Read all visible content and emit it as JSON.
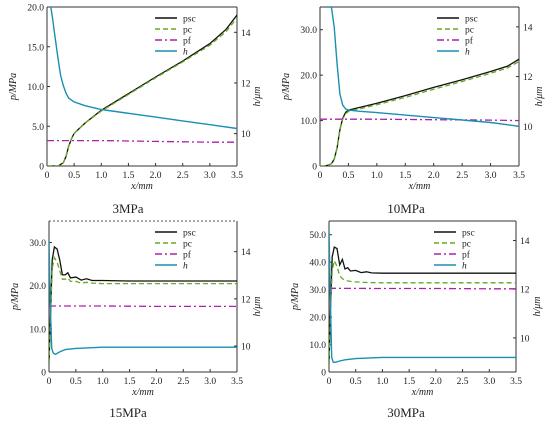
{
  "colors": {
    "psc": "#111111",
    "pc": "#66aa22",
    "pf": "#aa22aa",
    "h": "#1a8fb3",
    "frame": "#333333",
    "dashed_top": "#555555"
  },
  "chart_data": [
    {
      "type": "line",
      "caption": "3MPa",
      "xlabel": "x/mm",
      "ylabel": "p/MPa",
      "y2label": "h/μm",
      "xlim": [
        0,
        3.5
      ],
      "ylim": [
        0,
        20
      ],
      "y2lim": [
        8.72,
        15.0
      ],
      "xticks": [
        "0",
        "0.5",
        "1.0",
        "1.5",
        "2.0",
        "2.5",
        "3.0",
        "3.5"
      ],
      "yticks": [
        "0",
        "5.0",
        "10.0",
        "15.0",
        "20.0"
      ],
      "y2ticks": [
        "10",
        "12",
        "14"
      ],
      "legend": {
        "placement": "top-right"
      },
      "series": [
        {
          "name": "psc",
          "axis": "left",
          "style": "solid",
          "x": [
            0,
            0.2,
            0.3,
            0.35,
            0.4,
            0.45,
            0.5,
            0.7,
            1.0,
            1.5,
            2.0,
            2.5,
            3.0,
            3.3,
            3.5
          ],
          "y": [
            0,
            0,
            0.4,
            1.2,
            2.5,
            3.4,
            4.1,
            5.4,
            7.0,
            9.1,
            11.2,
            13.2,
            15.4,
            17.2,
            19.0
          ]
        },
        {
          "name": "pc",
          "axis": "left",
          "style": "dashed",
          "x": [
            0,
            0.2,
            0.3,
            0.35,
            0.4,
            0.45,
            0.5,
            0.7,
            1.0,
            1.5,
            2.0,
            2.5,
            3.0,
            3.3,
            3.5
          ],
          "y": [
            0,
            0,
            0.4,
            1.2,
            2.5,
            3.4,
            4.1,
            5.4,
            6.9,
            9.0,
            11.1,
            13.1,
            15.2,
            16.9,
            18.6
          ]
        },
        {
          "name": "pf",
          "axis": "left",
          "style": "dashdot",
          "x": [
            0,
            1.0,
            2.0,
            3.0,
            3.5
          ],
          "y": [
            3.2,
            3.2,
            3.1,
            3.0,
            3.0
          ]
        },
        {
          "name": "h",
          "axis": "right",
          "style": "solid",
          "x": [
            0.07,
            0.1,
            0.15,
            0.2,
            0.25,
            0.3,
            0.35,
            0.4,
            0.5,
            0.7,
            1.0,
            1.5,
            2.0,
            2.5,
            3.0,
            3.5
          ],
          "y": [
            15.0,
            14.6,
            13.8,
            13.0,
            12.3,
            11.9,
            11.6,
            11.4,
            11.25,
            11.1,
            10.95,
            10.8,
            10.65,
            10.5,
            10.35,
            10.2
          ]
        }
      ]
    },
    {
      "type": "line",
      "caption": "10MPa",
      "xlabel": "x/mm",
      "ylabel": "p/MPa",
      "y2label": "h/μm",
      "xlim": [
        0,
        3.5
      ],
      "ylim": [
        0,
        35
      ],
      "y2lim": [
        8.4,
        14.8
      ],
      "xticks": [
        "0",
        "0.5",
        "1.0",
        "1.5",
        "2.0",
        "2.5",
        "3.0",
        "3.5"
      ],
      "yticks": [
        "0",
        "10.0",
        "20.0",
        "30.0"
      ],
      "y2ticks": [
        "10",
        "12",
        "14"
      ],
      "legend": {
        "placement": "top-right"
      },
      "series": [
        {
          "name": "psc",
          "axis": "left",
          "style": "solid",
          "x": [
            0,
            0.1,
            0.2,
            0.25,
            0.3,
            0.35,
            0.4,
            0.45,
            0.5,
            0.7,
            1.0,
            1.5,
            2.0,
            2.5,
            3.0,
            3.3,
            3.5
          ],
          "y": [
            0,
            0,
            0.5,
            1.5,
            4.0,
            8.0,
            10.5,
            11.8,
            12.3,
            12.9,
            13.8,
            15.5,
            17.3,
            19.0,
            20.8,
            22.0,
            23.5
          ]
        },
        {
          "name": "pc",
          "axis": "left",
          "style": "dashed",
          "x": [
            0,
            0.1,
            0.2,
            0.25,
            0.3,
            0.35,
            0.4,
            0.45,
            0.5,
            0.7,
            1.0,
            1.5,
            2.0,
            2.5,
            3.0,
            3.3,
            3.5
          ],
          "y": [
            0,
            0,
            0.5,
            1.5,
            4.0,
            8.0,
            10.3,
            11.5,
            12.0,
            12.6,
            13.5,
            15.1,
            16.9,
            18.6,
            20.4,
            21.6,
            23.0
          ]
        },
        {
          "name": "pf",
          "axis": "left",
          "style": "dashdot",
          "x": [
            0,
            1.0,
            2.0,
            3.0,
            3.5
          ],
          "y": [
            10.3,
            10.3,
            10.2,
            10.1,
            10.0
          ]
        },
        {
          "name": "h",
          "axis": "right",
          "style": "solid",
          "x": [
            0.08,
            0.2,
            0.25,
            0.3,
            0.35,
            0.4,
            0.45,
            0.5,
            0.7,
            1.0,
            1.5,
            2.0,
            2.5,
            3.0,
            3.5
          ],
          "y": [
            14.8,
            14.8,
            14.0,
            12.5,
            11.3,
            10.85,
            10.7,
            10.65,
            10.6,
            10.55,
            10.45,
            10.35,
            10.25,
            10.15,
            10.0
          ]
        }
      ]
    },
    {
      "type": "line",
      "caption": "15MPa",
      "xlabel": "x/mm",
      "ylabel": "p/MPa",
      "y2label": "h/μm",
      "xlim": [
        0,
        3.5
      ],
      "ylim": [
        0,
        35
      ],
      "y2lim": [
        8.9,
        15.3
      ],
      "xticks": [
        "0",
        "0.5",
        "1.0",
        "1.5",
        "2.0",
        "2.5",
        "3.0",
        "3.5"
      ],
      "yticks": [
        "0",
        "10.0",
        "20.0",
        "30.0"
      ],
      "y2ticks": [
        "10",
        "12",
        "14"
      ],
      "legend": {
        "placement": "top-right"
      },
      "series": [
        {
          "name": "psc",
          "axis": "left",
          "style": "solid",
          "x": [
            0,
            0.03,
            0.06,
            0.1,
            0.15,
            0.2,
            0.25,
            0.3,
            0.35,
            0.4,
            0.5,
            0.6,
            0.7,
            0.8,
            1.0,
            1.5,
            2.0,
            2.5,
            3.0,
            3.5
          ],
          "y": [
            2,
            14,
            26,
            29,
            28.5,
            26,
            22.5,
            22.5,
            23,
            21.8,
            22,
            21.3,
            21.6,
            21.2,
            21.2,
            21.1,
            21.1,
            21.1,
            21.1,
            21.1
          ]
        },
        {
          "name": "pc",
          "axis": "left",
          "style": "dashed",
          "x": [
            0,
            0.03,
            0.06,
            0.1,
            0.15,
            0.2,
            0.25,
            0.3,
            0.35,
            0.4,
            0.5,
            0.6,
            0.7,
            0.8,
            1.0,
            1.5,
            2.0,
            2.5,
            3.0,
            3.5
          ],
          "y": [
            2,
            13,
            24,
            26.5,
            25.5,
            23.5,
            21.5,
            21.5,
            21.8,
            21.0,
            21.0,
            20.6,
            20.8,
            20.6,
            20.5,
            20.5,
            20.5,
            20.5,
            20.5,
            20.5
          ]
        },
        {
          "name": "pf",
          "axis": "left",
          "style": "dashdot",
          "x": [
            0,
            1.0,
            2.0,
            3.0,
            3.5
          ],
          "y": [
            15.3,
            15.3,
            15.2,
            15.2,
            15.2
          ]
        },
        {
          "name": "h",
          "axis": "right",
          "style": "solid",
          "x": [
            0,
            0.02,
            0.05,
            0.08,
            0.12,
            0.2,
            0.3,
            0.5,
            1.0,
            1.5,
            2.0,
            2.5,
            3.0,
            3.5
          ],
          "y": [
            14.5,
            12.0,
            9.9,
            9.7,
            9.65,
            9.75,
            9.85,
            9.9,
            9.95,
            9.95,
            9.95,
            9.95,
            9.95,
            9.95
          ]
        }
      ]
    },
    {
      "type": "line",
      "caption": "30MPa",
      "xlabel": "x/mm",
      "ylabel": "p/MPa",
      "y2label": "h/μm",
      "xlim": [
        0,
        3.5
      ],
      "ylim": [
        0,
        55
      ],
      "y2lim": [
        8.6,
        14.8
      ],
      "xticks": [
        "0",
        "0.5",
        "1.0",
        "1.5",
        "2.0",
        "2.5",
        "3.0",
        "3.5"
      ],
      "yticks": [
        "0",
        "10.0",
        "20.0",
        "30.0",
        "40.0",
        "50.0"
      ],
      "y2ticks": [
        "10",
        "12",
        "14"
      ],
      "legend": {
        "placement": "top-right"
      },
      "series": [
        {
          "name": "psc",
          "axis": "left",
          "style": "solid",
          "x": [
            0,
            0.03,
            0.06,
            0.1,
            0.15,
            0.2,
            0.25,
            0.3,
            0.35,
            0.4,
            0.5,
            0.6,
            0.7,
            0.8,
            1.0,
            1.5,
            2.0,
            2.5,
            3.0,
            3.5
          ],
          "y": [
            3,
            25,
            42,
            45.5,
            45,
            39,
            41,
            37.5,
            38,
            36.8,
            37,
            36.2,
            36.5,
            36.1,
            36.0,
            36.0,
            36.0,
            36.0,
            36.0,
            36.0
          ]
        },
        {
          "name": "pc",
          "axis": "left",
          "style": "dashed",
          "x": [
            0,
            0.03,
            0.06,
            0.1,
            0.15,
            0.2,
            0.25,
            0.3,
            0.35,
            0.4,
            0.5,
            0.7,
            1.0,
            1.5,
            2.0,
            2.5,
            3.0,
            3.5
          ],
          "y": [
            3,
            22,
            37,
            40.5,
            38.5,
            35,
            34,
            33.5,
            33.2,
            33,
            32.8,
            32.6,
            32.5,
            32.5,
            32.5,
            32.5,
            32.5,
            32.5
          ]
        },
        {
          "name": "pf",
          "axis": "left",
          "style": "dashdot",
          "x": [
            0,
            1.0,
            2.0,
            3.0,
            3.5
          ],
          "y": [
            30.5,
            30.4,
            30.4,
            30.3,
            30.3
          ]
        },
        {
          "name": "h",
          "axis": "right",
          "style": "solid",
          "x": [
            0,
            0.02,
            0.05,
            0.08,
            0.12,
            0.2,
            0.3,
            0.5,
            1.0,
            1.5,
            2.0,
            2.5,
            3.0,
            3.5
          ],
          "y": [
            14.5,
            12.0,
            9.2,
            9.0,
            9.0,
            9.05,
            9.1,
            9.15,
            9.2,
            9.2,
            9.2,
            9.2,
            9.2,
            9.2
          ]
        }
      ]
    }
  ]
}
